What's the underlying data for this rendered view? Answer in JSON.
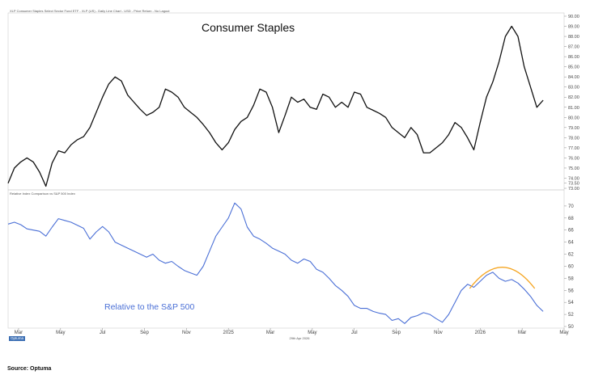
{
  "header": {
    "info": "XLP Consumer Staples Select Sector Fund ETF - XLP (US) - Daily Line Chart - USD - Price Return - No Lagout",
    "relative_info": "Relative Index Comparison vs S&P 500 Index"
  },
  "chart_title": "Consumer Staples",
  "relative_label": "Relative to the S&P 500",
  "brand": "Optuma",
  "date_footer": "29th Apr 2026",
  "source": "Source: Optuma",
  "colors": {
    "price": "#111111",
    "relative": "#4a6fd6",
    "arc": "#f5a623",
    "axis": "#888888",
    "grid": "#dddddd"
  },
  "chart_data": [
    {
      "type": "line",
      "title": "Consumer Staples",
      "ylim": [
        73,
        90
      ],
      "y_ticks": [
        "90.00",
        "89.00",
        "88.00",
        "87.00",
        "86.00",
        "85.00",
        "84.00",
        "83.00",
        "82.00",
        "81.00",
        "80.00",
        "79.00",
        "78.00",
        "77.00",
        "76.00",
        "75.00",
        "74.00",
        "73.50",
        "73.00"
      ],
      "x_tick_labels": [
        "Mar",
        "May",
        "Jul",
        "Sep",
        "Nov",
        "2025",
        "Mar",
        "May",
        "Jul",
        "Sep",
        "Nov",
        "2026",
        "Mar",
        "May"
      ],
      "x_month_index": [
        0,
        2,
        4,
        6,
        8,
        10,
        12,
        14,
        16,
        18,
        20,
        22,
        24,
        26
      ],
      "series": [
        {
          "x": [
            0,
            0.3,
            0.6,
            0.9,
            1.2,
            1.5,
            1.8,
            2.1,
            2.4,
            2.7,
            3,
            3.3,
            3.6,
            3.9,
            4.2,
            4.5,
            4.8,
            5.1,
            5.4,
            5.7,
            6,
            6.3,
            6.6,
            6.9,
            7.2,
            7.5,
            7.8,
            8.1,
            8.4,
            8.7,
            9,
            9.3,
            9.6,
            9.9,
            10.2,
            10.5,
            10.8,
            11.1,
            11.4,
            11.7,
            12,
            12.3,
            12.6,
            12.9,
            13.2,
            13.5,
            13.8,
            14.1,
            14.4,
            14.7,
            15,
            15.3,
            15.6,
            15.9,
            16.2,
            16.5,
            16.8,
            17.1,
            17.4,
            17.7,
            18,
            18.3,
            18.6,
            18.9,
            19.2,
            19.5,
            19.8,
            20.1,
            20.4,
            20.7,
            21,
            21.3,
            21.6,
            21.9,
            22.2,
            22.5,
            22.8,
            23.1,
            23.4,
            23.7,
            24,
            24.3,
            24.6,
            24.9,
            25.2,
            25.5
          ],
          "values": [
            73.5,
            75.0,
            75.6,
            76.0,
            75.6,
            74.6,
            73.2,
            75.5,
            76.7,
            76.5,
            77.3,
            77.8,
            78.1,
            79.0,
            80.5,
            82.0,
            83.3,
            84.0,
            83.6,
            82.2,
            81.5,
            80.8,
            80.2,
            80.5,
            81.0,
            82.8,
            82.5,
            82.0,
            81.0,
            80.5,
            80.0,
            79.3,
            78.5,
            77.5,
            76.8,
            77.5,
            78.8,
            79.6,
            80.0,
            81.2,
            82.8,
            82.5,
            81.0,
            78.5,
            80.2,
            82.0,
            81.5,
            81.8,
            81.0,
            80.8,
            82.3,
            82.0,
            81.0,
            81.5,
            81.0,
            82.5,
            82.3,
            81.0,
            80.7,
            80.4,
            80.0,
            79.0,
            78.5,
            78.0,
            79.0,
            78.3,
            76.5,
            76.5,
            77.0,
            77.5,
            78.3,
            79.5,
            79.0,
            78.0,
            76.8,
            79.5,
            82.0,
            83.5,
            85.5,
            88.0,
            89.0,
            88.0,
            85.0,
            83.0,
            81.0,
            81.7
          ]
        }
      ]
    },
    {
      "type": "line",
      "title": "Relative to the S&P 500",
      "ylim": [
        50,
        72
      ],
      "y_ticks": [
        "70",
        "68",
        "66",
        "64",
        "62",
        "60",
        "58",
        "56",
        "54",
        "52",
        "50"
      ],
      "series": [
        {
          "x": [
            0,
            0.3,
            0.6,
            0.9,
            1.2,
            1.5,
            1.8,
            2.1,
            2.4,
            2.7,
            3,
            3.3,
            3.6,
            3.9,
            4.2,
            4.5,
            4.8,
            5.1,
            5.4,
            5.7,
            6,
            6.3,
            6.6,
            6.9,
            7.2,
            7.5,
            7.8,
            8.1,
            8.4,
            8.7,
            9,
            9.3,
            9.6,
            9.9,
            10.2,
            10.5,
            10.8,
            11.1,
            11.4,
            11.7,
            12,
            12.3,
            12.6,
            12.9,
            13.2,
            13.5,
            13.8,
            14.1,
            14.4,
            14.7,
            15,
            15.3,
            15.6,
            15.9,
            16.2,
            16.5,
            16.8,
            17.1,
            17.4,
            17.7,
            18,
            18.3,
            18.6,
            18.9,
            19.2,
            19.5,
            19.8,
            20.1,
            20.4,
            20.7,
            21,
            21.3,
            21.6,
            21.9,
            22.2,
            22.5,
            22.8,
            23.1,
            23.4,
            23.7,
            24,
            24.3,
            24.6,
            24.9,
            25.2,
            25.5
          ],
          "values": [
            67.0,
            67.3,
            66.9,
            66.2,
            66.0,
            65.8,
            65.0,
            66.5,
            67.9,
            67.6,
            67.3,
            66.8,
            66.3,
            64.5,
            65.7,
            66.6,
            65.7,
            64.0,
            63.5,
            63.0,
            62.5,
            62.0,
            61.5,
            62.0,
            61.0,
            60.5,
            60.8,
            60.0,
            59.3,
            58.9,
            58.5,
            60.0,
            62.5,
            65.0,
            66.5,
            68.0,
            70.5,
            69.5,
            66.5,
            65.0,
            64.5,
            63.8,
            63.0,
            62.5,
            62.0,
            61.0,
            60.5,
            61.2,
            60.8,
            59.5,
            59.0,
            58.0,
            56.8,
            56.0,
            55.0,
            53.5,
            53.0,
            53.0,
            52.5,
            52.2,
            52.0,
            51.0,
            51.3,
            50.5,
            51.5,
            51.8,
            52.3,
            52.0,
            51.3,
            50.7,
            52.0,
            54.0,
            56.0,
            57.0,
            56.5,
            57.5,
            58.5,
            59.0,
            58.0,
            57.5,
            57.8,
            57.2,
            56.2,
            55.0,
            53.5,
            52.5
          ]
        }
      ],
      "annotations": [
        {
          "type": "arc",
          "x_from": 22.0,
          "x_to": 25.1,
          "color": "#f5a623"
        }
      ]
    }
  ]
}
